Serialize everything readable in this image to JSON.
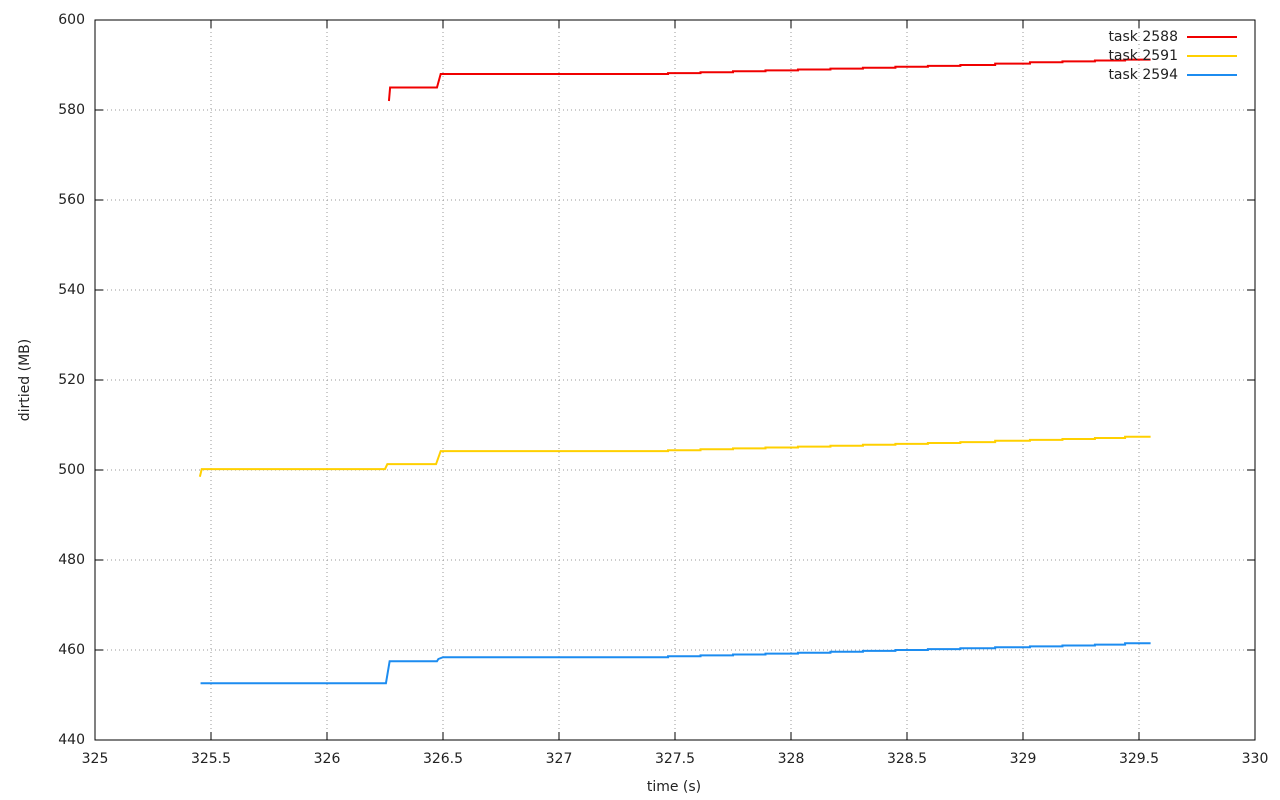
{
  "chart_data": {
    "type": "line",
    "x_label": "time (s)",
    "y_label": "dirtied (MB)",
    "xlim": [
      325,
      330
    ],
    "xticks": [
      325,
      325.5,
      326,
      326.5,
      327,
      327.5,
      328,
      328.5,
      329,
      329.5,
      330
    ],
    "ylim": [
      440,
      600
    ],
    "yticks": [
      440,
      460,
      480,
      500,
      520,
      540,
      560,
      580,
      600
    ],
    "grid": true,
    "legend": "top-right",
    "series": [
      {
        "name": "task 2588",
        "color": "#f00000",
        "x": [
          326.267,
          326.272,
          326.474,
          326.49,
          327.47,
          327.47,
          327.61,
          327.61,
          327.75,
          327.75,
          327.89,
          327.89,
          328.03,
          328.03,
          328.17,
          328.17,
          328.31,
          328.31,
          328.45,
          328.45,
          328.59,
          328.59,
          328.73,
          328.73,
          328.88,
          328.88,
          329.03,
          329.03,
          329.17,
          329.17,
          329.31,
          329.31,
          329.44,
          329.44,
          329.55
        ],
        "values": [
          582,
          585,
          585,
          588,
          588,
          588.2,
          588.2,
          588.4,
          588.4,
          588.6,
          588.6,
          588.8,
          588.8,
          589,
          589,
          589.2,
          589.2,
          589.4,
          589.4,
          589.6,
          589.6,
          589.8,
          589.8,
          590,
          590,
          590.3,
          590.3,
          590.6,
          590.6,
          590.8,
          590.8,
          591,
          591,
          591.2,
          591.2
        ]
      },
      {
        "name": "task 2591",
        "color": "#ffd000",
        "x": [
          325.452,
          325.46,
          326.25,
          326.26,
          326.47,
          326.49,
          327.47,
          327.47,
          327.61,
          327.61,
          327.75,
          327.75,
          327.89,
          327.89,
          328.03,
          328.03,
          328.17,
          328.17,
          328.31,
          328.31,
          328.45,
          328.45,
          328.59,
          328.59,
          328.73,
          328.73,
          328.88,
          328.88,
          329.03,
          329.03,
          329.17,
          329.17,
          329.31,
          329.31,
          329.44,
          329.44,
          329.55
        ],
        "values": [
          498.5,
          500.2,
          500.2,
          501.3,
          501.3,
          504.2,
          504.2,
          504.4,
          504.4,
          504.6,
          504.6,
          504.8,
          504.8,
          505,
          505,
          505.2,
          505.2,
          505.4,
          505.4,
          505.6,
          505.6,
          505.8,
          505.8,
          506,
          506,
          506.2,
          506.2,
          506.5,
          506.5,
          506.7,
          506.7,
          506.9,
          506.9,
          507.1,
          507.1,
          507.4,
          507.4
        ]
      },
      {
        "name": "task 2594",
        "color": "#1c8cf0",
        "x": [
          325.455,
          326.254,
          326.27,
          326.474,
          326.48,
          326.5,
          327.47,
          327.47,
          327.61,
          327.61,
          327.75,
          327.75,
          327.89,
          327.89,
          328.03,
          328.03,
          328.17,
          328.17,
          328.31,
          328.31,
          328.45,
          328.45,
          328.59,
          328.59,
          328.73,
          328.73,
          328.88,
          328.88,
          329.03,
          329.03,
          329.17,
          329.17,
          329.31,
          329.31,
          329.44,
          329.44,
          329.55
        ],
        "values": [
          452.6,
          452.6,
          457.5,
          457.5,
          458,
          458.4,
          458.4,
          458.6,
          458.6,
          458.8,
          458.8,
          459,
          459,
          459.2,
          459.2,
          459.4,
          459.4,
          459.6,
          459.6,
          459.8,
          459.8,
          460,
          460,
          460.2,
          460.2,
          460.4,
          460.4,
          460.6,
          460.6,
          460.8,
          460.8,
          461,
          461,
          461.2,
          461.2,
          461.5,
          461.5
        ]
      }
    ]
  }
}
